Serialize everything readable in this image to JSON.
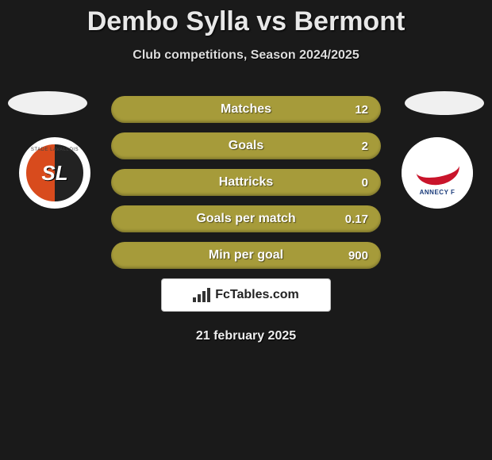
{
  "header": {
    "title": "Dembo Sylla vs Bermont",
    "subtitle": "Club competitions, Season 2024/2025"
  },
  "colors": {
    "background": "#1a1a1a",
    "bar_fill": "#a69b3a",
    "text_light": "#fdfdfd",
    "title_color": "#e8e8e8"
  },
  "left_player": {
    "club_name": "Stade Lavallois",
    "badge_text": "SL",
    "badge_top_text": "STADE LAVALLOIS"
  },
  "right_player": {
    "club_name": "Annecy FC",
    "badge_text": "ANNECY F"
  },
  "stats": [
    {
      "label": "Matches",
      "right_value": "12"
    },
    {
      "label": "Goals",
      "right_value": "2"
    },
    {
      "label": "Hattricks",
      "right_value": "0"
    },
    {
      "label": "Goals per match",
      "right_value": "0.17"
    },
    {
      "label": "Min per goal",
      "right_value": "900"
    }
  ],
  "branding": {
    "text": "FcTables.com"
  },
  "footer": {
    "date": "21 february 2025"
  }
}
